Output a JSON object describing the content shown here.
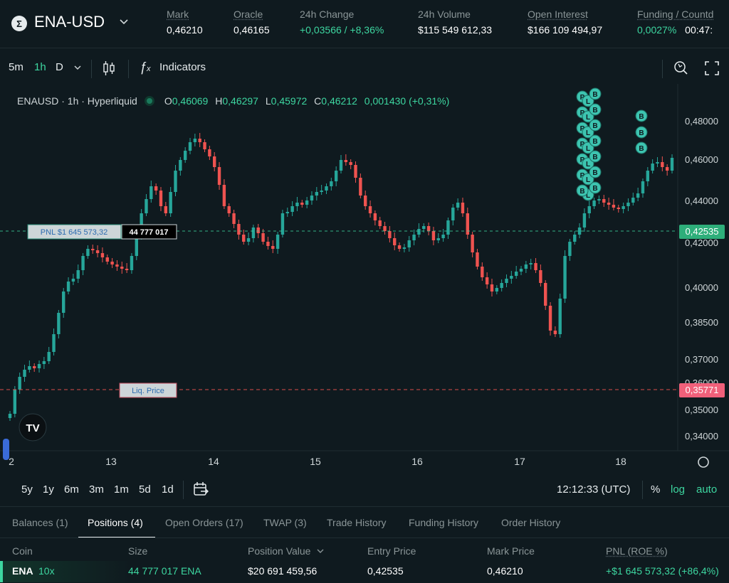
{
  "header": {
    "coin_icon": "Σ",
    "symbol": "ENA-USD",
    "stats": [
      {
        "label": "Mark",
        "value": "0,46210"
      },
      {
        "label": "Oracle",
        "value": "0,46165"
      },
      {
        "label": "24h Change",
        "value": "+0,03566 / +8,36%"
      },
      {
        "label": "24h Volume",
        "value": "$115 549 612,33"
      },
      {
        "label": "Open Interest",
        "value": "$166 109 494,97"
      },
      {
        "label": "Funding / Countd",
        "value": "0,0027%",
        "value2": "00:47:"
      }
    ]
  },
  "toolbar": {
    "intervals": [
      "5m",
      "1h",
      "D"
    ],
    "active_interval": "1h",
    "indicators_label": "Indicators"
  },
  "legend": {
    "title": "ENAUSD · 1h · Hyperliquid",
    "o_label": "O",
    "o": "0,46069",
    "h_label": "H",
    "h": "0,46297",
    "l_label": "L",
    "l": "0,45972",
    "c_label": "C",
    "c": "0,46212",
    "change": "0,001430 (+0,31%)"
  },
  "chart_data": {
    "type": "candlestick",
    "price_axis_ticks": [
      "0,48000",
      "0,46000",
      "0,44000",
      "0,42000",
      "0,40000",
      "0,38500",
      "0,37000",
      "0,36000",
      "0,35000",
      "0,34000"
    ],
    "time_axis_ticks": [
      "2",
      "13",
      "14",
      "15",
      "16",
      "17",
      "18"
    ],
    "current_price_label": "0,42535",
    "liq_price_label": "0,35771",
    "pnl_tag": "PNL $1 645 573,32",
    "size_tag": "44 777 017",
    "liq_tag": "Liq. Price",
    "markers_p": "P",
    "markers_l": "L",
    "markers_b": "B",
    "colors": {
      "up": "#26a69a",
      "down": "#ef5350",
      "pnl_line": "#3dd6a0",
      "liq_line": "#ef5350"
    }
  },
  "rangebar": {
    "ranges": [
      "5y",
      "1y",
      "6m",
      "3m",
      "1m",
      "5d",
      "1d"
    ],
    "clock": "12:12:33 (UTC)",
    "percent": "%",
    "log": "log",
    "auto": "auto"
  },
  "tabs": [
    "Balances (1)",
    "Positions (4)",
    "Open Orders (17)",
    "TWAP (3)",
    "Trade History",
    "Funding History",
    "Order History"
  ],
  "table": {
    "headers": [
      "Coin",
      "Size",
      "Position Value",
      "Entry Price",
      "Mark Price",
      "PNL (ROE %)"
    ],
    "position_value_sort_icon": "chevron-down",
    "row": {
      "coin": "ENA",
      "leverage": "10x",
      "size": "44 777 017 ENA",
      "position_value": "$20 691 459,56",
      "entry_price": "0,42535",
      "mark_price": "0,46210",
      "pnl": "+$1 645 573,32 (+86,4%)"
    }
  }
}
